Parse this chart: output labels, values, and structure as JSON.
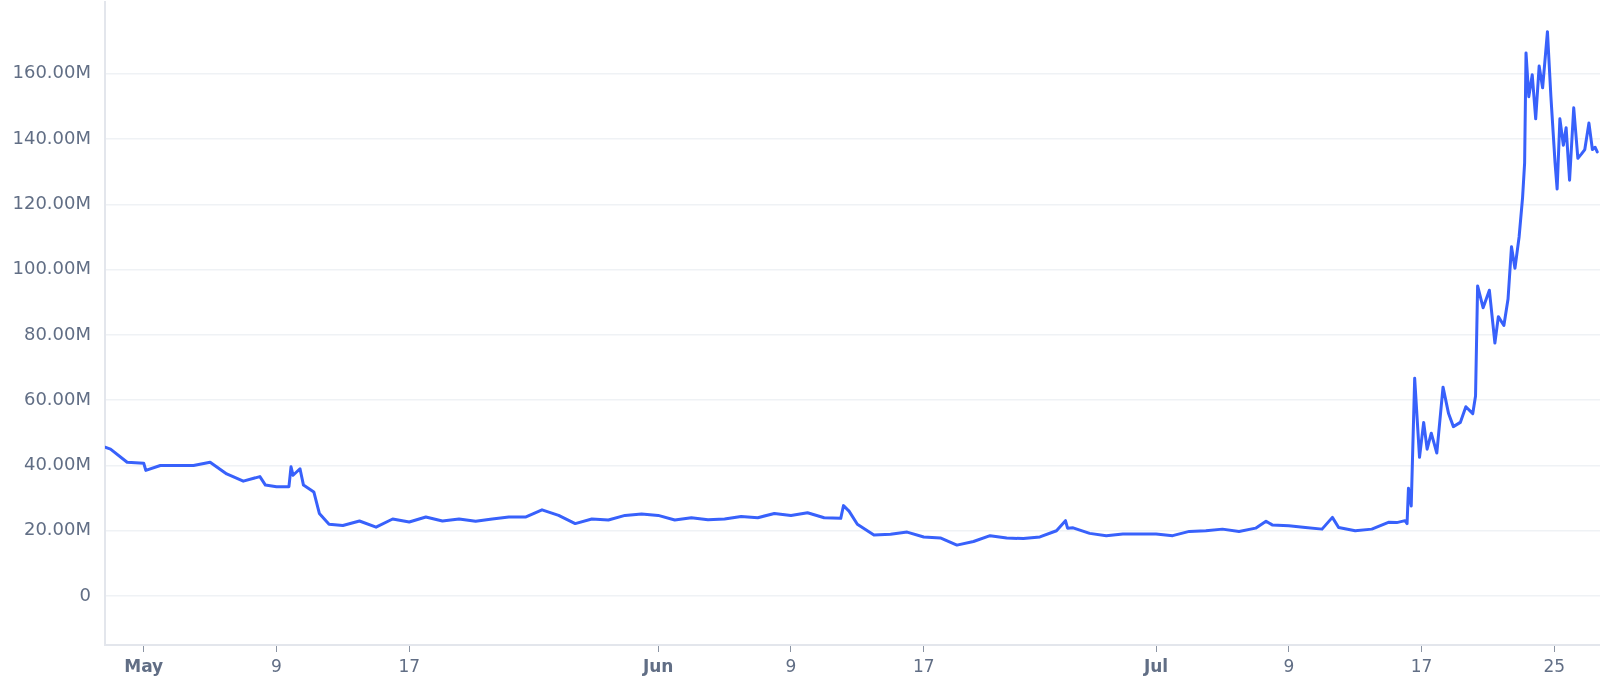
{
  "chart_data": {
    "type": "line",
    "series": [
      {
        "color": "#3861fb",
        "x": [
          "--04-28T16:00",
          "--04-29",
          "--04-30",
          "--05-01",
          "--05-01T03:00",
          "--05-02",
          "--05-03",
          "--05-04",
          "--05-05",
          "--05-06",
          "--05-07",
          "--05-08",
          "--05-08T08:00",
          "--05-09",
          "--05-09T18:00",
          "--05-09T21:00",
          "--05-10",
          "--05-10T10:00",
          "--05-10T15:00",
          "--05-11T06:00",
          "--05-11T14:00",
          "--05-12T04:00",
          "--05-13",
          "--05-14",
          "--05-15",
          "--05-16",
          "--05-17",
          "--05-18",
          "--05-19",
          "--05-20",
          "--05-21",
          "--05-22",
          "--05-23",
          "--05-24",
          "--05-25",
          "--05-26",
          "--05-27",
          "--05-28",
          "--05-29",
          "--05-30",
          "--05-31",
          "--06-01",
          "--06-02",
          "--06-03",
          "--06-04",
          "--06-05",
          "--06-06",
          "--06-07",
          "--06-08",
          "--06-09",
          "--06-10",
          "--06-11",
          "--06-12",
          "--06-12T04:00",
          "--06-12T12:00",
          "--06-13",
          "--06-14",
          "--06-15",
          "--06-16",
          "--06-17",
          "--06-18",
          "--06-19",
          "--06-20",
          "--06-21",
          "--06-22",
          "--06-23",
          "--06-24",
          "--06-25",
          "--06-25T13:00",
          "--06-25T16:00",
          "--06-26",
          "--06-27",
          "--06-28",
          "--06-29",
          "--06-30",
          "--07-01",
          "--07-02",
          "--07-03",
          "--07-04",
          "--07-05",
          "--07-06",
          "--07-07",
          "--07-07T15:00",
          "--07-08",
          "--07-09",
          "--07-10",
          "--07-11",
          "--07-11T15:00",
          "--07-12",
          "--07-13",
          "--07-14",
          "--07-15",
          "--07-15T12:00",
          "--07-16",
          "--07-16T03:00",
          "--07-16T05:00",
          "--07-16T09:00",
          "--07-16T14:00",
          "--07-16T21:00",
          "--07-17T03:00",
          "--07-17T08:00",
          "--07-17T14:00",
          "--07-17T22:00",
          "--07-18T07:00",
          "--07-18T15:00",
          "--07-18T22:00",
          "--07-19T08:00",
          "--07-19T16:00",
          "--07-20T02:00",
          "--07-20T06:00",
          "--07-20T09:00",
          "--07-20T17:00",
          "--07-21T02:00",
          "--07-21T06:00",
          "--07-21T10:00",
          "--07-21T15:00",
          "--07-21T23:00",
          "--07-22T05:00",
          "--07-22T10:00",
          "--07-22T15:00",
          "--07-22T21:00",
          "--07-23T02:00",
          "--07-23T05:00",
          "--07-23T07:00",
          "--07-23T11:00",
          "--07-23T16:00",
          "--07-23T21:00",
          "--07-24T02:00",
          "--07-24T07:00",
          "--07-24T14:00",
          "--07-24T19:00",
          "--07-25T01:00",
          "--07-25T04:00",
          "--07-25T08:00",
          "--07-25T13:00",
          "--07-25T17:00",
          "--07-25T22:00",
          "--07-26T04:00",
          "--07-26T10:00",
          "--07-26T15:00",
          "--07-26T20:00",
          "--07-27T02:00",
          "--07-27T07:00",
          "--07-27T11:00",
          "--07-27T14:00"
        ],
        "values": [
          45.6,
          45.0,
          41.0,
          40.7,
          38.5,
          40.0,
          40.0,
          40.0,
          41.0,
          37.4,
          35.2,
          36.6,
          34.0,
          33.5,
          33.5,
          39.6,
          37.0,
          39.0,
          34.0,
          31.9,
          25.3,
          22.0,
          21.6,
          23.0,
          21.1,
          23.6,
          22.7,
          24.2,
          23.0,
          23.6,
          22.9,
          23.6,
          24.2,
          24.2,
          26.4,
          24.7,
          22.2,
          23.6,
          23.3,
          24.7,
          25.1,
          24.7,
          23.3,
          24.0,
          23.4,
          23.6,
          24.4,
          24.0,
          25.3,
          24.7,
          25.5,
          24.0,
          23.8,
          27.7,
          26.0,
          22.0,
          18.7,
          18.9,
          19.6,
          18.1,
          17.8,
          15.6,
          16.7,
          18.5,
          17.8,
          17.6,
          18.1,
          20.0,
          23.1,
          20.8,
          20.9,
          19.2,
          18.5,
          19.0,
          19.0,
          19.0,
          18.5,
          19.8,
          20.0,
          20.5,
          19.8,
          20.8,
          22.9,
          21.8,
          21.5,
          21.0,
          20.5,
          24.1,
          21.0,
          20.0,
          20.5,
          22.6,
          22.5,
          23.1,
          22.2,
          33.0,
          27.6,
          66.7,
          42.5,
          53.2,
          45.0,
          49.9,
          43.8,
          64.0,
          55.9,
          51.9,
          53.2,
          58.0,
          55.9,
          61.3,
          95.0,
          88.3,
          93.7,
          85.6,
          77.5,
          85.6,
          82.9,
          91.0,
          107.0,
          100.4,
          110.0,
          122.0,
          132.7,
          166.4,
          153.0,
          159.7,
          146.2,
          162.4,
          155.7,
          172.9,
          153.0,
          132.7,
          124.7,
          146.2,
          138.1,
          143.5,
          127.4,
          149.6,
          134.1,
          135.4,
          136.8,
          144.9,
          136.8,
          137.5,
          136.1
        ]
      }
    ],
    "xlim": [
      "--04-28T16:00",
      "--07-27T18:00"
    ],
    "xticks": [
      {
        "value": "--05-01",
        "label": "May"
      },
      {
        "value": "--05-09",
        "label": "9"
      },
      {
        "value": "--05-17",
        "label": "17"
      },
      {
        "value": "--06-01",
        "label": "Jun"
      },
      {
        "value": "--06-09",
        "label": "9"
      },
      {
        "value": "--06-17",
        "label": "17"
      },
      {
        "value": "--07-01",
        "label": "Jul"
      },
      {
        "value": "--07-09",
        "label": "9"
      },
      {
        "value": "--07-17",
        "label": "17"
      },
      {
        "value": "--07-25",
        "label": "25"
      }
    ],
    "ylim": [
      -15,
      182
    ],
    "yticks": [
      0,
      {
        "value": 20,
        "label": "20.00M"
      },
      {
        "value": 40,
        "label": "40.00M"
      },
      {
        "value": 60,
        "label": "60.00M"
      },
      {
        "value": 80,
        "label": "80.00M"
      },
      {
        "value": 100,
        "label": "100.00M"
      },
      {
        "value": 120,
        "label": "120.00M"
      },
      {
        "value": 140,
        "label": "140.00M"
      },
      {
        "value": 160,
        "label": "160.00M"
      }
    ],
    "grid": "y",
    "legend": false,
    "marker": "none"
  }
}
